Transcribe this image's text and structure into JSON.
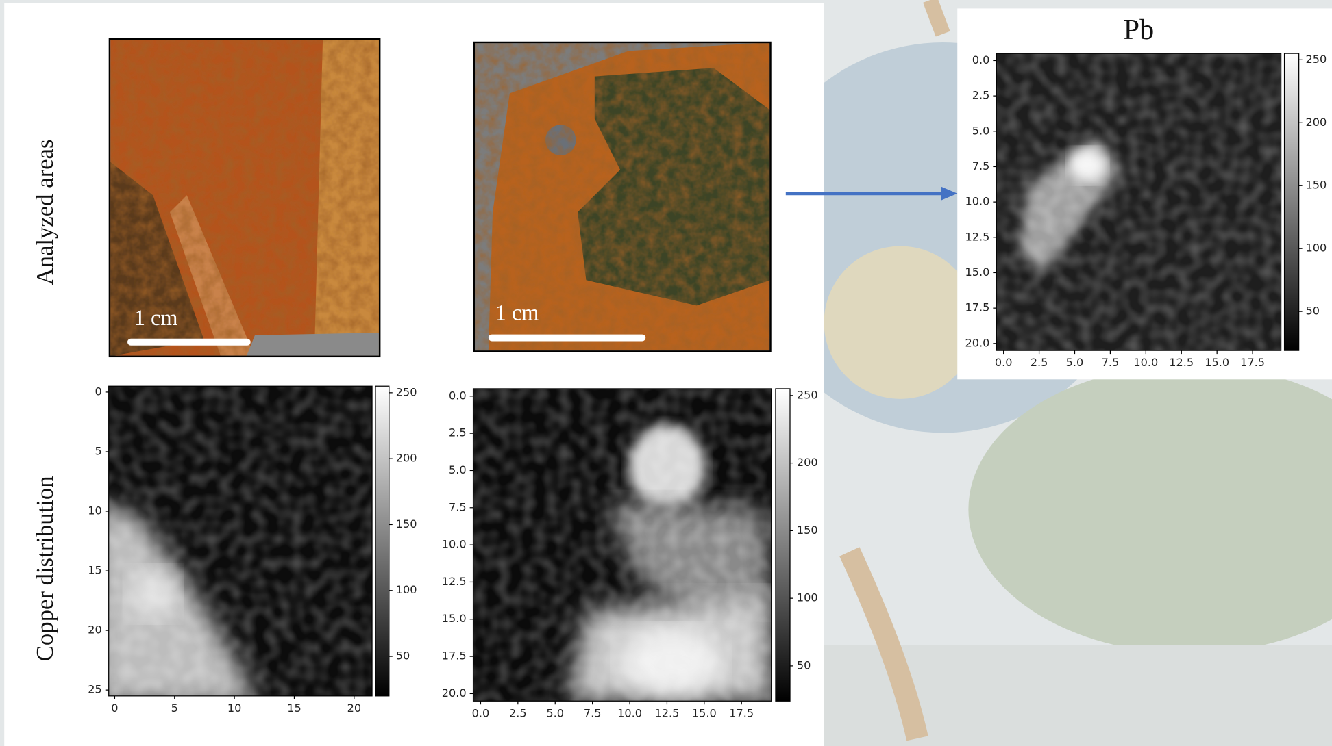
{
  "slide": {
    "row_labels": [
      "Analyzed areas",
      "Copper distribution"
    ],
    "scale_bars": [
      "1 cm",
      "1 cm"
    ]
  },
  "chart_data": [
    {
      "type": "heatmap",
      "xlim": [
        -0.5,
        21.5
      ],
      "ylim": [
        25.5,
        -0.5
      ],
      "xticks": [
        0,
        5,
        10,
        15,
        20
      ],
      "yticks": [
        0,
        5,
        10,
        15,
        20,
        25
      ],
      "colorbar_lim": [
        20,
        255
      ],
      "colorbar_ticks": [
        50,
        100,
        150,
        200,
        250
      ],
      "colormap": "gray"
    },
    {
      "type": "heatmap",
      "xlim": [
        -0.5,
        19.5
      ],
      "ylim": [
        20.5,
        -0.5
      ],
      "xticks": [
        {
          "value": 0,
          "label": "0.0"
        },
        2.5,
        {
          "value": 5,
          "label": "5.0"
        },
        7.5,
        {
          "value": 10,
          "label": "10.0"
        },
        12.5,
        {
          "value": 15,
          "label": "15.0"
        },
        17.5
      ],
      "yticks": [
        {
          "value": 0,
          "label": "0.0"
        },
        2.5,
        {
          "value": 5,
          "label": "5.0"
        },
        7.5,
        {
          "value": 10,
          "label": "10.0"
        },
        12.5,
        {
          "value": 15,
          "label": "15.0"
        },
        17.5,
        {
          "value": 20,
          "label": "20.0"
        }
      ],
      "colorbar_lim": [
        24,
        255
      ],
      "colorbar_ticks": [
        50,
        100,
        150,
        200,
        250
      ],
      "colormap": "gray"
    },
    {
      "type": "heatmap",
      "title": "Pb",
      "xlim": [
        -0.5,
        19.5
      ],
      "ylim": [
        20.5,
        -0.5
      ],
      "xticks": [
        {
          "value": 0,
          "label": "0.0"
        },
        2.5,
        {
          "value": 5,
          "label": "5.0"
        },
        7.5,
        {
          "value": 10,
          "label": "10.0"
        },
        12.5,
        {
          "value": 15,
          "label": "15.0"
        },
        17.5
      ],
      "yticks": [
        {
          "value": 0,
          "label": "0.0"
        },
        2.5,
        {
          "value": 5,
          "label": "5.0"
        },
        7.5,
        {
          "value": 10,
          "label": "10.0"
        },
        12.5,
        {
          "value": 15,
          "label": "15.0"
        },
        17.5,
        {
          "value": 20,
          "label": "20.0"
        }
      ],
      "colorbar_lim": [
        19,
        255
      ],
      "colorbar_ticks": [
        50,
        100,
        150,
        200,
        250
      ],
      "colormap": "gray"
    }
  ]
}
